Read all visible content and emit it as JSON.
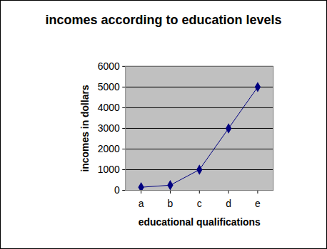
{
  "chart_data": {
    "type": "line",
    "title": "incomes according to education levels",
    "x_label": "educational qualifications",
    "y_label": "incomes in dollars",
    "categories": [
      "a",
      "b",
      "c",
      "d",
      "e"
    ],
    "values": [
      150,
      250,
      1000,
      3000,
      5000
    ],
    "color": "#000080",
    "marker": "diamond",
    "ylim": [
      0,
      6000
    ],
    "yticks": [
      0,
      1000,
      2000,
      3000,
      4000,
      5000,
      6000
    ],
    "grid": true
  }
}
